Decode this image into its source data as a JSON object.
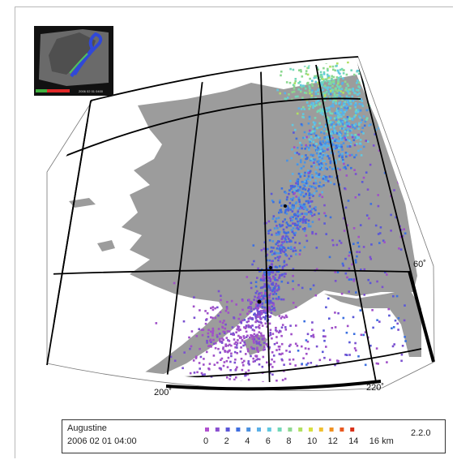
{
  "inset": {
    "timestamp": "2006 02 01 0400"
  },
  "labels": {
    "lon_200": "200˚",
    "lon_220": "220˚",
    "lat_60": "60˚"
  },
  "legend": {
    "volcano": "Augustine",
    "datetime": "2006 02 01 04:00",
    "version": "2.2.0",
    "scale_ticks": [
      "0",
      "2",
      "4",
      "6",
      "8",
      "10",
      "12",
      "14",
      "16 km"
    ],
    "scale_colors": [
      "#b050d0",
      "#8a4fd0",
      "#5a55d8",
      "#3f6ee0",
      "#4a90e0",
      "#5ab0e8",
      "#60c8e0",
      "#70d8b8",
      "#8cd890",
      "#b0e060",
      "#d8e040",
      "#f0c030",
      "#f09020",
      "#e85820",
      "#d83018"
    ]
  },
  "colors": {
    "land": "#9c9c9c",
    "water": "#ffffff",
    "grid": "#000000"
  }
}
